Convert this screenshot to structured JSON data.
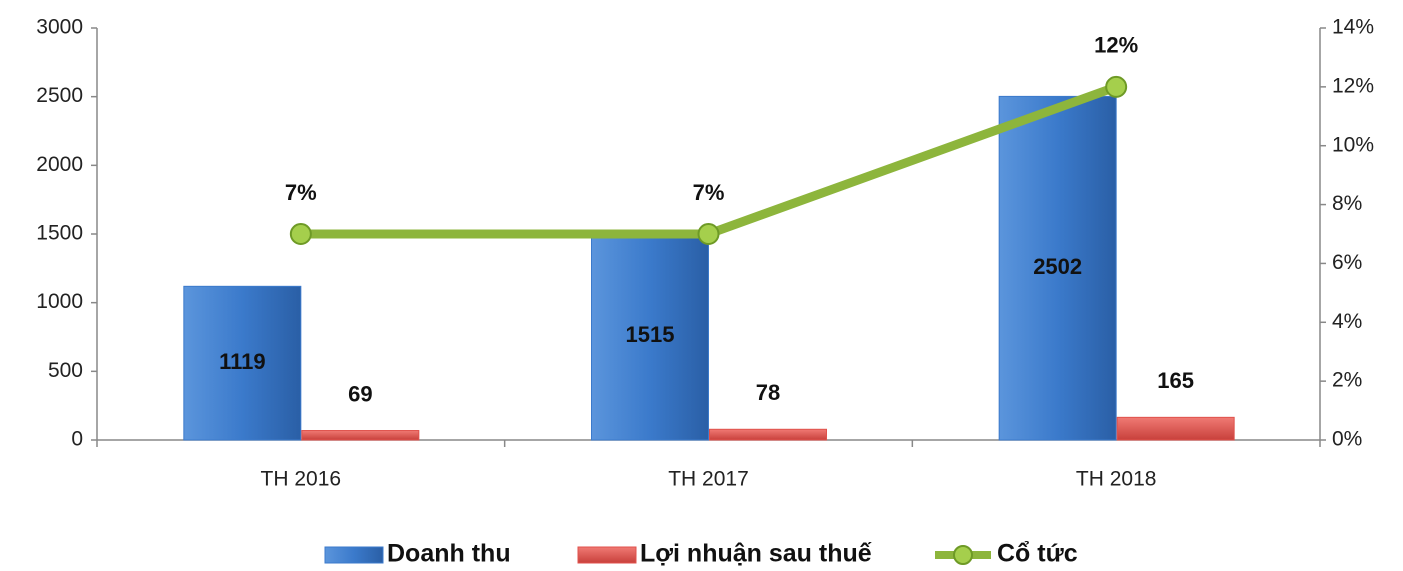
{
  "chart_data": {
    "type": "bar_line",
    "categories": [
      "TH 2016",
      "TH 2017",
      "TH 2018"
    ],
    "series": [
      {
        "name": "Doanh thu",
        "color": "#3b7acb",
        "values": [
          1119,
          1515,
          2502
        ]
      },
      {
        "name": "Lợi nhuận sau thuế",
        "color": "#e0524c",
        "values": [
          69,
          78,
          165
        ]
      },
      {
        "name": "Cổ tức",
        "color": "#8db53c",
        "axis": "y2",
        "values": [
          7,
          7,
          12
        ],
        "value_labels": [
          "7%",
          "7%",
          "12%"
        ]
      }
    ],
    "ylim": [
      0,
      3000
    ],
    "yticks": [
      0,
      500,
      1000,
      1500,
      2000,
      2500,
      3000
    ],
    "y2lim": [
      0,
      14
    ],
    "y2ticks": [
      {
        "value": 0,
        "label": "0%"
      },
      {
        "value": 2,
        "label": "2%"
      },
      {
        "value": 4,
        "label": "4%"
      },
      {
        "value": 6,
        "label": "6%"
      },
      {
        "value": 8,
        "label": "8%"
      },
      {
        "value": 10,
        "label": "10%"
      },
      {
        "value": 12,
        "label": "12%"
      },
      {
        "value": 14,
        "label": "14%"
      }
    ],
    "grid": false,
    "legend": "bottom"
  }
}
